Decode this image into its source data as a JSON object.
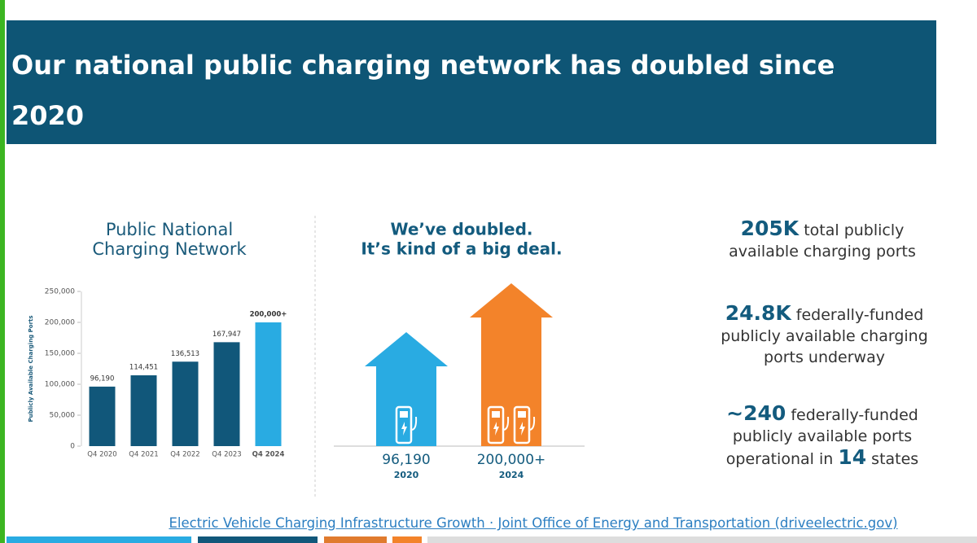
{
  "header": {
    "title": "Our national public charging network has doubled since 2020"
  },
  "chart_data": {
    "type": "bar",
    "title": "Public National Charging Network",
    "y_label": "Publicly Available Charging Ports",
    "categories": [
      "Q4 2020",
      "Q4 2021",
      "Q4 2022",
      "Q4 2023",
      "Q4 2024"
    ],
    "values": [
      96190,
      114451,
      136513,
      167947,
      200000
    ],
    "value_labels": [
      "96,190",
      "114,451",
      "136,513",
      "167,947",
      "200,000+"
    ],
    "colors": [
      "#11577a",
      "#11577a",
      "#11577a",
      "#11577a",
      "#29abe2"
    ],
    "ylim": [
      0,
      250000
    ],
    "yticks": [
      0,
      {
        "value": 50000,
        "label": "50,000"
      },
      {
        "value": 100000,
        "label": "100,000"
      },
      {
        "value": 150000,
        "label": "150,000"
      },
      {
        "value": 200000,
        "label": "200,000"
      },
      {
        "value": 250000,
        "label": "250,000"
      }
    ]
  },
  "infographic": {
    "title_lines": [
      "We’ve doubled.",
      "It’s kind of a big deal."
    ],
    "items": [
      {
        "value": "96,190",
        "year": "2020",
        "color": "#29abe2"
      },
      {
        "value": "200,000+",
        "year": "2024",
        "color": "#f3832a"
      }
    ]
  },
  "stats": [
    {
      "parts": [
        "205K",
        " total publicly available charging ports"
      ]
    },
    {
      "parts": [
        "24.8K",
        " federally-funded publicly available charging ports underway"
      ]
    },
    {
      "parts": [
        "~240",
        " federally-funded publicly available ports operational in ",
        "14",
        " states"
      ]
    }
  ],
  "footer": {
    "link": "Electric Vehicle Charging Infrastructure Growth · Joint Office of Energy and Transportation (driveelectric.gov)"
  }
}
